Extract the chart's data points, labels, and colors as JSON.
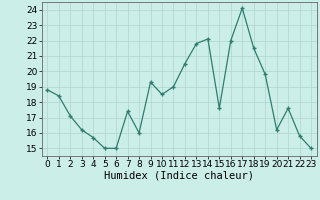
{
  "x": [
    0,
    1,
    2,
    3,
    4,
    5,
    6,
    7,
    8,
    9,
    10,
    11,
    12,
    13,
    14,
    15,
    16,
    17,
    18,
    19,
    20,
    21,
    22,
    23
  ],
  "y": [
    18.8,
    18.4,
    17.1,
    16.2,
    15.7,
    15.0,
    15.0,
    17.4,
    16.0,
    19.3,
    18.5,
    19.0,
    20.5,
    21.8,
    22.1,
    17.6,
    22.0,
    24.1,
    21.5,
    19.8,
    16.2,
    17.6,
    15.8,
    15.0
  ],
  "xlabel": "Humidex (Indice chaleur)",
  "ylim": [
    14.5,
    24.5
  ],
  "xlim": [
    -0.5,
    23.5
  ],
  "yticks": [
    15,
    16,
    17,
    18,
    19,
    20,
    21,
    22,
    23,
    24
  ],
  "xticks": [
    0,
    1,
    2,
    3,
    4,
    5,
    6,
    7,
    8,
    9,
    10,
    11,
    12,
    13,
    14,
    15,
    16,
    17,
    18,
    19,
    20,
    21,
    22,
    23
  ],
  "line_color": "#2e7d6e",
  "marker_color": "#2e7d6e",
  "bg_color": "#cceee8",
  "grid_color": "#b0d4ce",
  "xlabel_fontsize": 7.5,
  "tick_fontsize": 6.5
}
